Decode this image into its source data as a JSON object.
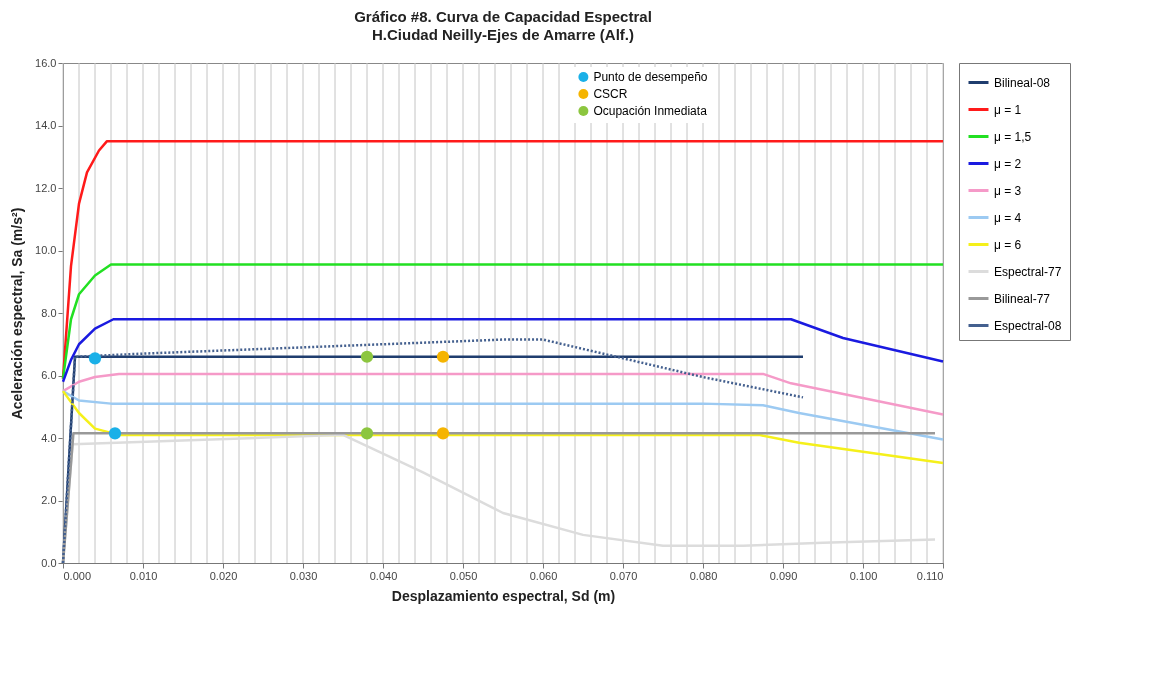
{
  "chart_data": {
    "type": "line",
    "title": "Gráfico #8. Curva de Capacidad Espectral",
    "subtitle": "H.Ciudad Neilly-Ejes de Amarre (Alf.)",
    "xlabel": "Desplazamiento espectral, Sd (m)",
    "ylabel": "Aceleración espectral, Sa (m/s²)",
    "xlim": [
      0,
      0.11
    ],
    "ylim": [
      0,
      16
    ],
    "xticks": [
      {
        "value": 0,
        "label": "0.000"
      },
      {
        "value": 0.002,
        "label": null
      },
      {
        "value": 0.004,
        "label": null
      },
      {
        "value": 0.006,
        "label": null
      },
      {
        "value": 0.008,
        "label": null
      },
      {
        "value": 0.01,
        "label": "0.010"
      },
      {
        "value": 0.012,
        "label": null
      },
      {
        "value": 0.014,
        "label": null
      },
      {
        "value": 0.016,
        "label": null
      },
      {
        "value": 0.018,
        "label": null
      },
      {
        "value": 0.02,
        "label": "0.020"
      },
      {
        "value": 0.022,
        "label": null
      },
      {
        "value": 0.024,
        "label": null
      },
      {
        "value": 0.026,
        "label": null
      },
      {
        "value": 0.028,
        "label": null
      },
      {
        "value": 0.03,
        "label": "0.030"
      },
      {
        "value": 0.032,
        "label": null
      },
      {
        "value": 0.034,
        "label": null
      },
      {
        "value": 0.036,
        "label": null
      },
      {
        "value": 0.038,
        "label": null
      },
      {
        "value": 0.04,
        "label": "0.040"
      },
      {
        "value": 0.042,
        "label": null
      },
      {
        "value": 0.044,
        "label": null
      },
      {
        "value": 0.046,
        "label": null
      },
      {
        "value": 0.048,
        "label": null
      },
      {
        "value": 0.05,
        "label": "0.050"
      },
      {
        "value": 0.052,
        "label": null
      },
      {
        "value": 0.054,
        "label": null
      },
      {
        "value": 0.056,
        "label": null
      },
      {
        "value": 0.058,
        "label": null
      },
      {
        "value": 0.06,
        "label": "0.060"
      },
      {
        "value": 0.062,
        "label": null
      },
      {
        "value": 0.064,
        "label": null
      },
      {
        "value": 0.066,
        "label": null
      },
      {
        "value": 0.068,
        "label": null
      },
      {
        "value": 0.07,
        "label": "0.070"
      },
      {
        "value": 0.072,
        "label": null
      },
      {
        "value": 0.074,
        "label": null
      },
      {
        "value": 0.076,
        "label": null
      },
      {
        "value": 0.078,
        "label": null
      },
      {
        "value": 0.08,
        "label": "0.080"
      },
      {
        "value": 0.082,
        "label": null
      },
      {
        "value": 0.084,
        "label": null
      },
      {
        "value": 0.086,
        "label": null
      },
      {
        "value": 0.088,
        "label": null
      },
      {
        "value": 0.09,
        "label": "0.090"
      },
      {
        "value": 0.092,
        "label": null
      },
      {
        "value": 0.094,
        "label": null
      },
      {
        "value": 0.096,
        "label": null
      },
      {
        "value": 0.098,
        "label": null
      },
      {
        "value": 0.1,
        "label": "0.100"
      },
      {
        "value": 0.102,
        "label": null
      },
      {
        "value": 0.104,
        "label": null
      },
      {
        "value": 0.106,
        "label": null
      },
      {
        "value": 0.108,
        "label": null
      },
      {
        "value": 0.11,
        "label": "0.110"
      }
    ],
    "yticks": [
      {
        "value": 0,
        "label": "0.0"
      },
      {
        "value": 2,
        "label": "2.0"
      },
      {
        "value": 4,
        "label": "4.0"
      },
      {
        "value": 6,
        "label": "6.0"
      },
      {
        "value": 8,
        "label": "8.0"
      },
      {
        "value": 10,
        "label": "10.0"
      },
      {
        "value": 12,
        "label": "12.0"
      },
      {
        "value": 14,
        "label": "14.0"
      },
      {
        "value": 16,
        "label": "16.0"
      }
    ],
    "grid": "x",
    "legend": "right",
    "series": [
      {
        "name": "Bilineal-08",
        "color": "#1f3d6e",
        "x": [
          0,
          0.0015,
          0.0925
        ],
        "values": [
          0,
          6.6,
          6.6
        ]
      },
      {
        "name": "μ = 1",
        "color": "#ff1a1a",
        "x": [
          0,
          0.001,
          0.002,
          0.003,
          0.0045,
          0.0055,
          0.11
        ],
        "values": [
          5.9,
          9.5,
          11.5,
          12.5,
          13.2,
          13.5,
          13.5
        ]
      },
      {
        "name": "μ = 1,5",
        "color": "#22e022",
        "x": [
          0,
          0.001,
          0.002,
          0.004,
          0.006,
          0.11
        ],
        "values": [
          5.9,
          7.8,
          8.6,
          9.2,
          9.55,
          9.55
        ]
      },
      {
        "name": "μ = 2",
        "color": "#1a1ae0",
        "x": [
          0,
          0.001,
          0.002,
          0.004,
          0.0063,
          0.091,
          0.0975,
          0.11
        ],
        "values": [
          5.8,
          6.5,
          7.0,
          7.5,
          7.8,
          7.8,
          7.2,
          6.45
        ]
      },
      {
        "name": "μ = 3",
        "color": "#f59ac8",
        "x": [
          0,
          0.002,
          0.004,
          0.007,
          0.0875,
          0.091,
          0.11
        ],
        "values": [
          5.5,
          5.8,
          5.95,
          6.05,
          6.05,
          5.75,
          4.75
        ]
      },
      {
        "name": "μ = 4",
        "color": "#9ccaf2",
        "x": [
          0,
          0.002,
          0.006,
          0.08,
          0.0875,
          0.092,
          0.11
        ],
        "values": [
          5.5,
          5.2,
          5.1,
          5.1,
          5.05,
          4.8,
          3.95
        ]
      },
      {
        "name": "μ = 6",
        "color": "#f5f01a",
        "x": [
          0,
          0.002,
          0.004,
          0.007,
          0.087,
          0.092,
          0.11
        ],
        "values": [
          5.5,
          4.8,
          4.3,
          4.1,
          4.1,
          3.85,
          3.2
        ]
      },
      {
        "name": "Espectral-77",
        "color": "#dcdcdc",
        "x": [
          0,
          0.0012,
          0.035,
          0.045,
          0.055,
          0.065,
          0.075,
          0.085,
          0.095,
          0.109
        ],
        "values": [
          0,
          3.8,
          4.1,
          2.9,
          1.6,
          0.9,
          0.55,
          0.55,
          0.65,
          0.75
        ]
      },
      {
        "name": "Bilineal-77",
        "color": "#999999",
        "x": [
          0,
          0.0013,
          0.109
        ],
        "values": [
          0,
          4.15,
          4.15
        ]
      },
      {
        "name": "Espectral-08",
        "color": "#44608f",
        "line_style": "dotted",
        "x": [
          0,
          0.0015,
          0.01,
          0.03,
          0.045,
          0.055,
          0.06,
          0.07,
          0.08,
          0.0925
        ],
        "values": [
          0,
          6.6,
          6.7,
          6.9,
          7.05,
          7.15,
          7.15,
          6.55,
          5.95,
          5.3
        ]
      },
      {
        "name": "Punto de desempeño",
        "type": "scatter",
        "marker": "circle",
        "color": "#1ab0e8",
        "x": [
          0.004,
          0.0065
        ],
        "values": [
          6.55,
          4.15
        ]
      },
      {
        "name": "CSCR",
        "type": "scatter",
        "marker": "circle",
        "color": "#f5b400",
        "x": [
          0.0475,
          0.0475
        ],
        "values": [
          6.6,
          4.15
        ]
      },
      {
        "name": "Ocupación Inmediata",
        "type": "scatter",
        "marker": "circle",
        "color": "#8cc63f",
        "x": [
          0.038,
          0.038
        ],
        "values": [
          6.6,
          4.15
        ]
      }
    ]
  }
}
